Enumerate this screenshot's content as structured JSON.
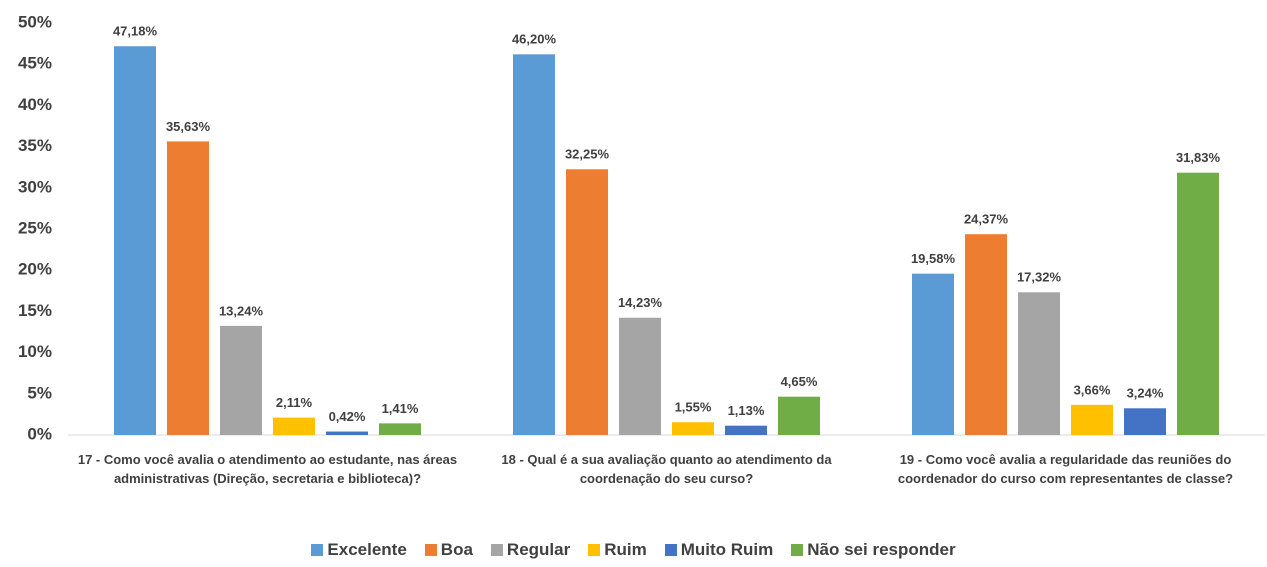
{
  "chart_data": {
    "type": "bar",
    "categories": [
      "17 - Como você avalia o atendimento ao estudante, nas áreas administrativas (Direção, secretaria e biblioteca)?",
      "18 - Qual é a sua avaliação quanto ao atendimento da coordenação do seu curso?",
      "19 - Como você avalia a regularidade das reuniões do coordenador do curso com representantes de classe?"
    ],
    "series": [
      {
        "name": "Excelente",
        "color": "#5b9bd5",
        "values": [
          47.18,
          46.2,
          19.58
        ],
        "value_labels": [
          "47,18%",
          "46,20%",
          "19,58%"
        ]
      },
      {
        "name": "Boa",
        "color": "#ed7d31",
        "values": [
          35.63,
          32.25,
          24.37
        ],
        "value_labels": [
          "35,63%",
          "32,25%",
          "24,37%"
        ]
      },
      {
        "name": "Regular",
        "color": "#a5a5a5",
        "values": [
          13.24,
          14.23,
          17.32
        ],
        "value_labels": [
          "13,24%",
          "14,23%",
          "17,32%"
        ]
      },
      {
        "name": "Ruim",
        "color": "#ffc000",
        "values": [
          2.11,
          1.55,
          3.66
        ],
        "value_labels": [
          "2,11%",
          "1,55%",
          "3,66%"
        ]
      },
      {
        "name": "Muito Ruim",
        "color": "#4472c4",
        "values": [
          0.42,
          1.13,
          3.24
        ],
        "value_labels": [
          "0,42%",
          "1,13%",
          "3,24%"
        ]
      },
      {
        "name": "Não sei responder",
        "color": "#70ad47",
        "values": [
          1.41,
          4.65,
          31.83
        ],
        "value_labels": [
          "1,41%",
          "4,65%",
          "31,83%"
        ]
      }
    ],
    "ylim": [
      0,
      50
    ],
    "yticks": [
      {
        "value": 0,
        "label": "0%"
      },
      {
        "value": 5,
        "label": "5%"
      },
      {
        "value": 10,
        "label": "10%"
      },
      {
        "value": 15,
        "label": "15%"
      },
      {
        "value": 20,
        "label": "20%"
      },
      {
        "value": 25,
        "label": "25%"
      },
      {
        "value": 30,
        "label": "30%"
      },
      {
        "value": 35,
        "label": "35%"
      },
      {
        "value": 40,
        "label": "40%"
      },
      {
        "value": 45,
        "label": "45%"
      },
      {
        "value": 50,
        "label": "50%"
      }
    ],
    "legend": "bottom"
  }
}
